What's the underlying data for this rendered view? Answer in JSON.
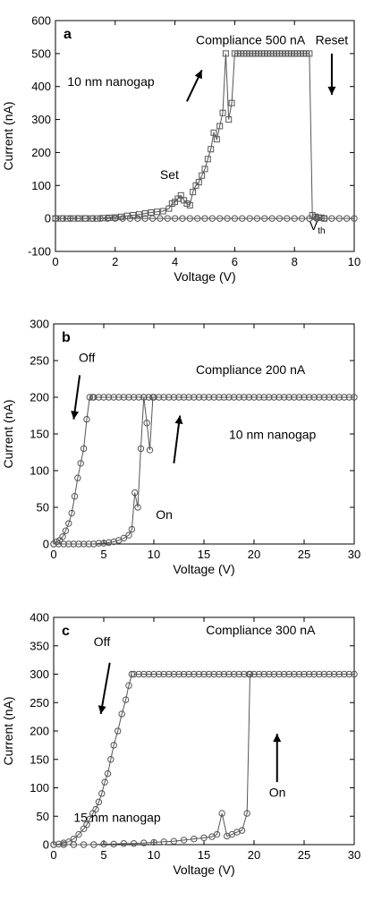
{
  "chart_data": [
    {
      "type": "line",
      "panel": "a",
      "xlabel": "Voltage (V)",
      "ylabel": "Current (nA)",
      "xlim": [
        0,
        10
      ],
      "ylim": [
        -100,
        600
      ],
      "xticks": [
        0,
        2,
        4,
        6,
        8,
        10
      ],
      "yticks": [
        -100,
        0,
        100,
        200,
        300,
        400,
        500,
        600
      ],
      "grid": false,
      "annotations": [
        {
          "text": "Compliance 500 nA",
          "x": 4.7,
          "y": 528
        },
        {
          "text": "Reset",
          "x": 8.7,
          "y": 528
        },
        {
          "text": "10 nm nanogap",
          "x": 0.4,
          "y": 402
        },
        {
          "text": "Set",
          "x": 3.5,
          "y": 120
        }
      ],
      "vth_label": {
        "main": "V",
        "sub": "th",
        "x": 8.5,
        "y": -35
      },
      "arrows": [
        {
          "from": [
            4.4,
            355
          ],
          "to": [
            4.9,
            450
          ]
        },
        {
          "from": [
            9.25,
            500
          ],
          "to": [
            9.25,
            375
          ]
        }
      ],
      "series": [
        {
          "marker": "square",
          "x": [
            0,
            0.2,
            0.4,
            0.6,
            0.8,
            1.0,
            1.2,
            1.4,
            1.6,
            1.8,
            2.0,
            2.2,
            2.4,
            2.6,
            2.8,
            3.0,
            3.2,
            3.4,
            3.6,
            3.8,
            3.9,
            4.0,
            4.1,
            4.2,
            4.3,
            4.4,
            4.5,
            4.6,
            4.7,
            4.8,
            4.9,
            5.0,
            5.1,
            5.2,
            5.3,
            5.4,
            5.5,
            5.6,
            5.7,
            5.8,
            5.9,
            6.0,
            6.1,
            6.2,
            6.3,
            6.4,
            6.5,
            6.6,
            6.7,
            6.8,
            6.9,
            7.0,
            7.1,
            7.2,
            7.3,
            7.4,
            7.5,
            7.6,
            7.7,
            7.8,
            7.9,
            8.0,
            8.1,
            8.2,
            8.3,
            8.4,
            8.5,
            8.6,
            8.7,
            8.8,
            8.9,
            9.0
          ],
          "y": [
            0,
            0,
            0,
            0,
            0,
            0,
            0,
            0,
            1,
            2,
            3,
            5,
            8,
            10,
            12,
            15,
            18,
            20,
            22,
            30,
            45,
            50,
            60,
            70,
            55,
            45,
            40,
            80,
            100,
            110,
            130,
            150,
            180,
            210,
            260,
            240,
            280,
            320,
            500,
            300,
            350,
            500,
            500,
            500,
            500,
            500,
            500,
            500,
            500,
            500,
            500,
            500,
            500,
            500,
            500,
            500,
            500,
            500,
            500,
            500,
            500,
            500,
            500,
            500,
            500,
            500,
            500,
            10,
            5,
            3,
            2,
            0
          ]
        },
        {
          "marker": "circle",
          "x": [
            0,
            0.25,
            0.5,
            0.75,
            1.0,
            1.25,
            1.5,
            1.75,
            2.0,
            2.25,
            2.5,
            2.75,
            3.0,
            3.25,
            3.5,
            3.75,
            4.0,
            4.25,
            4.5,
            4.75,
            5.0,
            5.25,
            5.5,
            5.75,
            6.0,
            6.25,
            6.5,
            6.75,
            7.0,
            7.25,
            7.5,
            7.75,
            8.0,
            8.25,
            8.5,
            8.75,
            9.0,
            9.25,
            9.5,
            9.75,
            10.0
          ],
          "y": [
            0,
            0,
            0,
            0,
            0,
            0,
            0,
            0,
            0,
            0,
            0,
            0,
            0,
            0,
            0,
            0,
            0,
            0,
            0,
            0,
            0,
            0,
            0,
            0,
            0,
            0,
            0,
            0,
            0,
            0,
            0,
            0,
            0,
            0,
            0,
            0,
            0,
            0,
            0,
            0,
            0
          ]
        }
      ]
    },
    {
      "type": "line",
      "panel": "b",
      "xlabel": "Voltage (V)",
      "ylabel": "Current (nA)",
      "xlim": [
        0,
        30
      ],
      "ylim": [
        0,
        300
      ],
      "xticks": [
        0,
        5,
        10,
        15,
        20,
        25,
        30
      ],
      "yticks": [
        0,
        50,
        100,
        150,
        200,
        250,
        300
      ],
      "grid": false,
      "annotations": [
        {
          "text": "Off",
          "x": 2.5,
          "y": 248
        },
        {
          "text": "Compliance 200 nA",
          "x": 14.2,
          "y": 232
        },
        {
          "text": "10 nm nanogap",
          "x": 17.5,
          "y": 143
        },
        {
          "text": "On",
          "x": 10.2,
          "y": 34
        }
      ],
      "arrows": [
        {
          "from": [
            2.6,
            230
          ],
          "to": [
            2.0,
            170
          ]
        },
        {
          "from": [
            12.0,
            110
          ],
          "to": [
            12.6,
            175
          ]
        }
      ],
      "series": [
        {
          "name": "Off",
          "marker": "circle",
          "x": [
            0.0,
            0.3,
            0.6,
            0.9,
            1.2,
            1.5,
            1.8,
            2.1,
            2.4,
            2.7,
            3.0,
            3.3,
            3.6,
            3.9
          ],
          "y": [
            0,
            3,
            5,
            10,
            18,
            28,
            42,
            65,
            90,
            110,
            130,
            170,
            200,
            200
          ]
        },
        {
          "name": "On",
          "marker": "circle",
          "x": [
            0,
            0.5,
            1.0,
            1.5,
            2.0,
            2.5,
            3.0,
            3.5,
            4.0,
            4.5,
            5.0,
            5.5,
            6.0,
            6.5,
            7.0,
            7.5,
            7.8,
            8.1,
            8.4,
            8.7,
            9.0,
            9.3,
            9.6,
            9.9
          ],
          "y": [
            0,
            0,
            0,
            0,
            0,
            0,
            0,
            0,
            0,
            1,
            1,
            2,
            3,
            5,
            8,
            12,
            20,
            70,
            50,
            130,
            200,
            165,
            128,
            200
          ]
        },
        {
          "name": "Compliance",
          "marker": "circle",
          "x": [
            4.0,
            4.5,
            5.0,
            5.5,
            6.0,
            6.5,
            7.0,
            7.5,
            8.0,
            8.5,
            9.0,
            9.5,
            10.0,
            10.5,
            11.0,
            11.5,
            12.0,
            12.5,
            13.0,
            13.5,
            14.0,
            14.5,
            15.0,
            15.5,
            16.0,
            16.5,
            17.0,
            17.5,
            18.0,
            18.5,
            19.0,
            19.5,
            20.0,
            20.5,
            21.0,
            21.5,
            22.0,
            22.5,
            23.0,
            23.5,
            24.0,
            24.5,
            25.0,
            25.5,
            26.0,
            26.5,
            27.0,
            27.5,
            28.0,
            28.5,
            29.0,
            29.5,
            30.0
          ],
          "y": [
            200,
            200,
            200,
            200,
            200,
            200,
            200,
            200,
            200,
            200,
            200,
            200,
            200,
            200,
            200,
            200,
            200,
            200,
            200,
            200,
            200,
            200,
            200,
            200,
            200,
            200,
            200,
            200,
            200,
            200,
            200,
            200,
            200,
            200,
            200,
            200,
            200,
            200,
            200,
            200,
            200,
            200,
            200,
            200,
            200,
            200,
            200,
            200,
            200,
            200,
            200,
            200,
            200
          ]
        }
      ]
    },
    {
      "type": "line",
      "panel": "c",
      "xlabel": "Voltage (V)",
      "ylabel": "Current (nA)",
      "xlim": [
        0,
        30
      ],
      "ylim": [
        0,
        400
      ],
      "xticks": [
        0,
        5,
        10,
        15,
        20,
        25,
        30
      ],
      "yticks": [
        0,
        50,
        100,
        150,
        200,
        250,
        300,
        350,
        400
      ],
      "grid": false,
      "annotations": [
        {
          "text": "Off",
          "x": 4.0,
          "y": 350
        },
        {
          "text": "Compliance 300 nA",
          "x": 15.2,
          "y": 370
        },
        {
          "text": "15 nm nanogap",
          "x": 2.0,
          "y": 40
        },
        {
          "text": "On",
          "x": 21.5,
          "y": 84
        }
      ],
      "arrows": [
        {
          "from": [
            5.6,
            320
          ],
          "to": [
            4.7,
            230
          ]
        },
        {
          "from": [
            22.3,
            110
          ],
          "to": [
            22.3,
            195
          ]
        }
      ],
      "series": [
        {
          "name": "Off",
          "marker": "circle",
          "x": [
            0.0,
            0.5,
            1.0,
            1.5,
            2.0,
            2.5,
            3.0,
            3.3,
            3.6,
            3.9,
            4.2,
            4.5,
            4.8,
            5.1,
            5.4,
            5.7,
            6.0,
            6.4,
            6.8,
            7.2,
            7.5,
            7.8
          ],
          "y": [
            0,
            1,
            3,
            5,
            10,
            18,
            28,
            35,
            45,
            55,
            62,
            75,
            90,
            110,
            125,
            150,
            175,
            200,
            230,
            255,
            280,
            300
          ]
        },
        {
          "name": "On",
          "marker": "circle",
          "x": [
            0,
            1,
            2,
            3,
            4,
            5,
            6,
            7,
            8,
            9,
            10,
            11,
            12,
            13,
            14,
            15,
            15.8,
            16.3,
            16.8,
            17.3,
            17.8,
            18.3,
            18.8,
            19.3,
            19.6
          ],
          "y": [
            0,
            0,
            0,
            0,
            0,
            1,
            1,
            2,
            2,
            3,
            4,
            5,
            6,
            8,
            10,
            12,
            14,
            18,
            55,
            15,
            18,
            22,
            25,
            55,
            300
          ]
        },
        {
          "name": "Compliance",
          "marker": "circle",
          "x": [
            8.0,
            8.5,
            9.0,
            9.5,
            10.0,
            10.5,
            11.0,
            11.5,
            12.0,
            12.5,
            13.0,
            13.5,
            14.0,
            14.5,
            15.0,
            15.5,
            16.0,
            16.5,
            17.0,
            17.5,
            18.0,
            18.5,
            19.0,
            19.5,
            20.0,
            20.5,
            21.0,
            21.5,
            22.0,
            22.5,
            23.0,
            23.5,
            24.0,
            24.5,
            25.0,
            25.5,
            26.0,
            26.5,
            27.0,
            27.5,
            28.0,
            28.5,
            29.0,
            29.5,
            30.0
          ],
          "y": [
            300,
            300,
            300,
            300,
            300,
            300,
            300,
            300,
            300,
            300,
            300,
            300,
            300,
            300,
            300,
            300,
            300,
            300,
            300,
            300,
            300,
            300,
            300,
            300,
            300,
            300,
            300,
            300,
            300,
            300,
            300,
            300,
            300,
            300,
            300,
            300,
            300,
            300,
            300,
            300,
            300,
            300,
            300,
            300,
            300
          ]
        }
      ]
    }
  ]
}
